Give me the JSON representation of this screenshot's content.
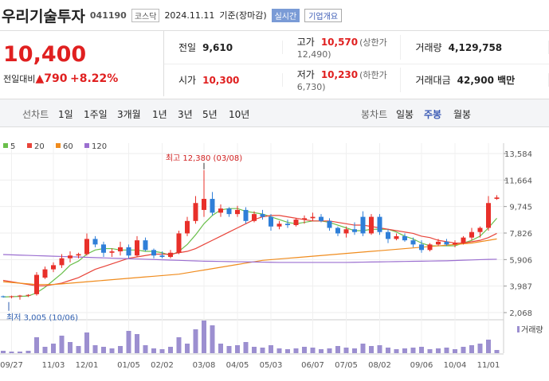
{
  "header": {
    "name": "우리기술투자",
    "code": "041190",
    "market": "코스닥",
    "date": "2024.11.11",
    "basis": "기준(장마감)",
    "realtime": "실시간",
    "company": "기업개요"
  },
  "quote": {
    "price": "10,400",
    "change_label": "전일대비",
    "change": "▲790",
    "rate": "+8.22%",
    "rows": [
      [
        [
          "전일",
          "9,610",
          null
        ],
        [
          "고가",
          "10,570",
          "(상한가 12,490)"
        ],
        [
          "거래량",
          "4,129,758",
          null
        ]
      ],
      [
        [
          "시가",
          "10,300",
          null
        ],
        [
          "저가",
          "10,230",
          "(하한가 6,730)"
        ],
        [
          "거래대금",
          "42,900 백만",
          null
        ]
      ]
    ]
  },
  "tabs": {
    "line_label": "선차트",
    "line": [
      "1일",
      "1주일",
      "3개월",
      "1년",
      "3년",
      "5년",
      "10년"
    ],
    "candle_label": "봉차트",
    "candle": [
      "일봉",
      "주봉",
      "월봉"
    ],
    "active": "주봉"
  },
  "chart": {
    "type": "candlestick",
    "legend": [
      {
        "name": "5",
        "color": "#6abf4b"
      },
      {
        "name": "20",
        "color": "#e8443a"
      },
      {
        "name": "60",
        "color": "#f08c1e"
      },
      {
        "name": "120",
        "color": "#9b6fd0"
      }
    ],
    "ylim": [
      2068,
      13584
    ],
    "yticks": [
      {
        "value": 13584,
        "label": "13,584"
      },
      {
        "value": 11664,
        "label": "11,664"
      },
      {
        "value": 9745,
        "label": "9,745"
      },
      {
        "value": 7826,
        "label": "7,826"
      },
      {
        "value": 5906,
        "label": "5,906"
      },
      {
        "value": 3987,
        "label": "3,987"
      },
      {
        "value": 2068,
        "label": "2,068"
      }
    ],
    "categories": [
      null,
      "09/27",
      null,
      null,
      null,
      null,
      "11/03",
      null,
      null,
      null,
      "12/01",
      null,
      null,
      null,
      null,
      "01/05",
      null,
      null,
      null,
      "02/02",
      null,
      null,
      null,
      null,
      "03/08",
      null,
      null,
      null,
      "04/05",
      null,
      null,
      null,
      "05/03",
      null,
      null,
      null,
      null,
      "06/07",
      null,
      null,
      null,
      "07/05",
      null,
      null,
      null,
      "08/02",
      null,
      null,
      null,
      null,
      "09/06",
      null,
      null,
      null,
      "10/04",
      null,
      null,
      null,
      "11/01",
      null
    ],
    "candles": [
      [
        3250,
        3300,
        3150,
        3200
      ],
      [
        3200,
        3300,
        3100,
        3250
      ],
      [
        3250,
        3350,
        3005,
        3300
      ],
      [
        3300,
        3400,
        3200,
        3350
      ],
      [
        3400,
        5000,
        3300,
        4800
      ],
      [
        4600,
        5400,
        4500,
        5200
      ],
      [
        5200,
        5700,
        5000,
        5500
      ],
      [
        5500,
        6300,
        5300,
        6000
      ],
      [
        6000,
        6500,
        5700,
        6200
      ],
      [
        6200,
        6400,
        6000,
        6300
      ],
      [
        6300,
        7800,
        6200,
        7400
      ],
      [
        7400,
        7600,
        6800,
        7000
      ],
      [
        7000,
        7200,
        6100,
        6400
      ],
      [
        6400,
        6700,
        6100,
        6500
      ],
      [
        6500,
        7200,
        6200,
        6800
      ],
      [
        6800,
        7000,
        6000,
        6200
      ],
      [
        6200,
        7600,
        6100,
        7300
      ],
      [
        7300,
        7500,
        6500,
        6600
      ],
      [
        6600,
        6700,
        6000,
        6200
      ],
      [
        6200,
        6500,
        6000,
        6100
      ],
      [
        6100,
        6600,
        6000,
        6400
      ],
      [
        6400,
        8000,
        6300,
        7800
      ],
      [
        7800,
        9000,
        7600,
        8700
      ],
      [
        8700,
        10500,
        8500,
        10000
      ],
      [
        9500,
        12380,
        9000,
        10300
      ],
      [
        10300,
        10800,
        9100,
        9300
      ],
      [
        9300,
        9900,
        9000,
        9600
      ],
      [
        9600,
        9700,
        9000,
        9200
      ],
      [
        9200,
        9800,
        9000,
        9500
      ],
      [
        9500,
        9700,
        8500,
        8700
      ],
      [
        8700,
        9400,
        8600,
        9200
      ],
      [
        9200,
        9500,
        8800,
        9000
      ],
      [
        9000,
        9200,
        8000,
        8300
      ],
      [
        8300,
        8700,
        8100,
        8500
      ],
      [
        8500,
        8800,
        8200,
        8400
      ],
      [
        8400,
        8900,
        8300,
        8800
      ],
      [
        8800,
        9100,
        8500,
        8900
      ],
      [
        8900,
        9300,
        8700,
        9000
      ],
      [
        9000,
        9200,
        8600,
        8700
      ],
      [
        8700,
        8900,
        8000,
        8200
      ],
      [
        8200,
        8300,
        7600,
        7800
      ],
      [
        7800,
        8300,
        7500,
        8100
      ],
      [
        8100,
        8600,
        7700,
        7900
      ],
      [
        9000,
        9400,
        7600,
        7800
      ],
      [
        7800,
        9200,
        7700,
        9000
      ],
      [
        9000,
        9200,
        7700,
        7900
      ],
      [
        7900,
        8100,
        7100,
        7400
      ],
      [
        7400,
        7800,
        7300,
        7600
      ],
      [
        7600,
        7800,
        7200,
        7300
      ],
      [
        7300,
        7500,
        6800,
        7000
      ],
      [
        7000,
        7300,
        6400,
        6600
      ],
      [
        6600,
        7100,
        6500,
        7000
      ],
      [
        7000,
        7400,
        6900,
        7200
      ],
      [
        7200,
        7400,
        6900,
        7000
      ],
      [
        7000,
        7300,
        6800,
        7100
      ],
      [
        7100,
        7600,
        7000,
        7500
      ],
      [
        7500,
        8200,
        7300,
        7900
      ],
      [
        7900,
        8300,
        7500,
        8200
      ],
      [
        8200,
        10500,
        8000,
        10000
      ],
      [
        10300,
        10570,
        10230,
        10400
      ]
    ],
    "ma": [
      [
        3200,
        3220,
        3240,
        3270,
        3500,
        3900,
        4400,
        4900,
        5500,
        5800,
        6300,
        6600,
        6700,
        6700,
        6600,
        6600,
        6600,
        6500,
        6500,
        6400,
        6200,
        6500,
        7000,
        7700,
        8500,
        9100,
        9500,
        9600,
        9600,
        9400,
        9300,
        9200,
        9000,
        8800,
        8600,
        8500,
        8600,
        8700,
        8700,
        8600,
        8400,
        8200,
        8000,
        8000,
        8100,
        8100,
        8100,
        7900,
        7600,
        7400,
        7100,
        6900,
        6900,
        6900,
        6900,
        7100,
        7300,
        7600,
        8200,
        8900
      ],
      [
        4400,
        4300,
        4200,
        4100,
        4000,
        4000,
        4100,
        4200,
        4400,
        4600,
        4900,
        5200,
        5400,
        5600,
        5800,
        6000,
        6100,
        6200,
        6300,
        6300,
        6300,
        6400,
        6500,
        6700,
        7000,
        7300,
        7600,
        7900,
        8200,
        8500,
        8800,
        9000,
        9100,
        9100,
        9000,
        8900,
        8800,
        8700,
        8700,
        8700,
        8600,
        8500,
        8400,
        8400,
        8300,
        8200,
        8100,
        8000,
        7900,
        7800,
        7600,
        7500,
        7300,
        7200,
        7100,
        7100,
        7200,
        7300,
        7500,
        7800
      ],
      [
        4300,
        4250,
        4200,
        4150,
        4100,
        4100,
        4100,
        4150,
        4200,
        4250,
        4300,
        4350,
        4400,
        4450,
        4500,
        4550,
        4600,
        4650,
        4700,
        4750,
        4800,
        4850,
        4950,
        5050,
        5150,
        5250,
        5350,
        5450,
        5550,
        5650,
        5750,
        5850,
        5900,
        5950,
        6000,
        6050,
        6100,
        6150,
        6200,
        6250,
        6300,
        6350,
        6400,
        6450,
        6500,
        6550,
        6600,
        6650,
        6700,
        6750,
        6800,
        6850,
        6900,
        6950,
        7000,
        7050,
        7100,
        7200,
        7300,
        7400
      ],
      [
        6270,
        6250,
        6230,
        6210,
        6190,
        6170,
        6150,
        6130,
        6110,
        6090,
        6070,
        6050,
        6030,
        6010,
        5990,
        5970,
        5950,
        5930,
        5910,
        5890,
        5870,
        5850,
        5830,
        5810,
        5790,
        5780,
        5770,
        5760,
        5750,
        5740,
        5730,
        5720,
        5710,
        5700,
        5700,
        5700,
        5700,
        5700,
        5700,
        5700,
        5700,
        5700,
        5710,
        5720,
        5730,
        5740,
        5750,
        5760,
        5770,
        5780,
        5790,
        5800,
        5810,
        5820,
        5840,
        5860,
        5880,
        5900,
        5920,
        5930
      ]
    ],
    "volume": [
      3,
      2,
      2,
      3,
      20,
      8,
      12,
      22,
      14,
      9,
      26,
      10,
      8,
      6,
      9,
      28,
      24,
      10,
      6,
      5,
      8,
      20,
      12,
      30,
      41,
      35,
      12,
      9,
      10,
      14,
      8,
      7,
      10,
      6,
      5,
      6,
      8,
      7,
      5,
      6,
      9,
      7,
      6,
      12,
      9,
      10,
      7,
      5,
      6,
      7,
      8,
      5,
      6,
      7,
      5,
      8,
      10,
      12,
      17,
      4
    ],
    "volume_label": "거래량",
    "high_label": "최고 12,380 (03/08)",
    "low_label": "최저 3,005 (10/06)"
  }
}
